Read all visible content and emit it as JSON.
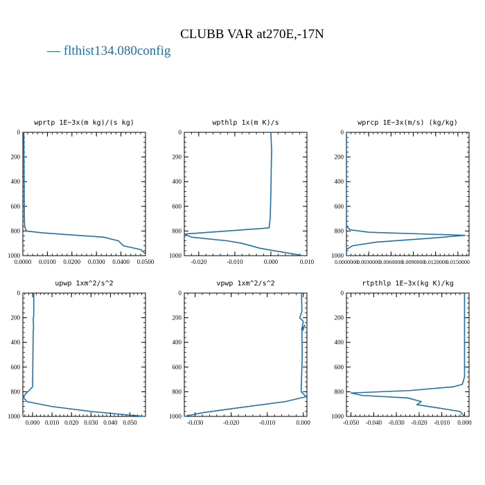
{
  "title": "CLUBB VAR at270E,-17N",
  "legend": {
    "label": "— flthist134.080config",
    "color": "#1f6fa8",
    "placement": "top-left"
  },
  "line_color": "#1f6fa8",
  "chart_data": [
    {
      "type": "line",
      "title": "wprtp  1E−3x(m kg)/(s kg)",
      "xlim": [
        0,
        0.05
      ],
      "ylim": [
        1000,
        0
      ],
      "xticks": [
        "0.0000",
        "0.0100",
        "0.0200",
        "0.0300",
        "0.0400",
        "0.0500"
      ],
      "xtick_values": [
        0,
        0.01,
        0.02,
        0.03,
        0.04,
        0.05
      ],
      "yticks": [
        "0",
        "200",
        "400",
        "600",
        "800",
        "1000"
      ],
      "ytick_values": [
        0,
        200,
        400,
        600,
        800,
        1000
      ],
      "series": [
        {
          "x": [
            0.0004,
            0.0005,
            0.0006,
            0.0008,
            0.0015,
            0.008,
            0.033,
            0.039,
            0.041,
            0.048,
            0.05
          ],
          "y": [
            0,
            400,
            700,
            770,
            800,
            815,
            850,
            880,
            920,
            950,
            985
          ]
        }
      ]
    },
    {
      "type": "line",
      "title": "wpthlp  1x(m K)/s",
      "xlim": [
        -0.024,
        0.01
      ],
      "ylim": [
        1000,
        0
      ],
      "xticks": [
        "-0.020",
        "-0.010",
        "0.000",
        "0.010"
      ],
      "xtick_values": [
        -0.02,
        -0.01,
        0,
        0.01
      ],
      "yticks": [
        "0",
        "200",
        "400",
        "600",
        "800",
        "1000"
      ],
      "ytick_values": [
        0,
        200,
        400,
        600,
        800,
        1000
      ],
      "series": [
        {
          "x": [
            0,
            0.0002,
            0.0001,
            0,
            -0.0002,
            -0.0005,
            -0.024,
            -0.022,
            -0.012,
            -0.008,
            -0.003,
            0.004,
            0.009
          ],
          "y": [
            0,
            150,
            300,
            500,
            700,
            775,
            825,
            850,
            880,
            900,
            940,
            975,
            1000
          ]
        }
      ]
    },
    {
      "type": "line",
      "title": "wprcp  1E−3x(m/s) (kg/kg)",
      "xlim": [
        0,
        0.0165
      ],
      "ylim": [
        1000,
        0
      ],
      "xticks": [
        "0.0000000",
        "0.0030000",
        "0.0060000",
        "0.0090000",
        "0.0120000",
        "0.0150000"
      ],
      "xtick_values": [
        0,
        0.003,
        0.006,
        0.009,
        0.012,
        0.015
      ],
      "yticks": [
        "0",
        "200",
        "400",
        "600",
        "800",
        "1000"
      ],
      "ytick_values": [
        0,
        200,
        400,
        600,
        800,
        1000
      ],
      "series": [
        {
          "x": [
            0,
            0,
            0,
            0.0005,
            0.003,
            0.016,
            0.011,
            0.004,
            0.0008,
            0,
            0
          ],
          "y": [
            0,
            400,
            760,
            790,
            810,
            835,
            860,
            890,
            920,
            950,
            1000
          ]
        }
      ]
    },
    {
      "type": "line",
      "title": "upwp  1xm^2/s^2",
      "xlim": [
        -0.005,
        0.058
      ],
      "ylim": [
        1000,
        0
      ],
      "xticks": [
        "0.000",
        "0.010",
        "0.020",
        "0.030",
        "0.040",
        "0.050"
      ],
      "xtick_values": [
        0,
        0.01,
        0.02,
        0.03,
        0.04,
        0.05
      ],
      "yticks": [
        "0",
        "200",
        "400",
        "600",
        "800",
        "1000"
      ],
      "ytick_values": [
        0,
        200,
        400,
        600,
        800,
        1000
      ],
      "series": [
        {
          "x": [
            0.0006,
            0.0006,
            0.0003,
            0.0005,
            0.0003,
            0,
            -0.005,
            -0.003,
            0.01,
            0.03,
            0.05,
            0.058
          ],
          "y": [
            0,
            180,
            210,
            280,
            310,
            760,
            840,
            880,
            920,
            960,
            990,
            1000
          ]
        }
      ]
    },
    {
      "type": "line",
      "title": "vpwp  1xm^2/s^2",
      "xlim": [
        -0.033,
        0.001
      ],
      "ylim": [
        1000,
        0
      ],
      "xticks": [
        "-0.030",
        "-0.020",
        "-0.010",
        "0.000"
      ],
      "xtick_values": [
        -0.03,
        -0.02,
        -0.01,
        0
      ],
      "yticks": [
        "0",
        "200",
        "400",
        "600",
        "800",
        "1000"
      ],
      "ytick_values": [
        0,
        200,
        400,
        600,
        800,
        1000
      ],
      "series": [
        {
          "x": [
            -0.0005,
            -0.0004,
            -0.001,
            0,
            -0.0005,
            0.0004,
            -0.0004,
            -0.0003,
            -0.0006,
            0.0008,
            -0.005,
            -0.018,
            -0.028,
            -0.033
          ],
          "y": [
            0,
            150,
            200,
            230,
            300,
            260,
            320,
            500,
            800,
            840,
            880,
            930,
            970,
            1000
          ]
        }
      ]
    },
    {
      "type": "line",
      "title": "rtpthlp  1E−3x(kg K)/kg",
      "xlim": [
        -0.052,
        0.002
      ],
      "ylim": [
        1000,
        0
      ],
      "xticks": [
        "-0.050",
        "-0.040",
        "-0.030",
        "-0.020",
        "-0.010",
        "0.000"
      ],
      "xtick_values": [
        -0.05,
        -0.04,
        -0.03,
        -0.02,
        -0.01,
        0
      ],
      "yticks": [
        "0",
        "200",
        "400",
        "600",
        "800",
        "1000"
      ],
      "ytick_values": [
        0,
        200,
        400,
        600,
        800,
        1000
      ],
      "series": [
        {
          "x": [
            0,
            0,
            -0.001,
            -0.005,
            -0.024,
            -0.05,
            -0.045,
            -0.025,
            -0.019,
            -0.021,
            -0.012,
            -0.002,
            0
          ],
          "y": [
            0,
            680,
            740,
            760,
            790,
            810,
            830,
            850,
            880,
            905,
            930,
            960,
            1000
          ]
        }
      ]
    }
  ]
}
